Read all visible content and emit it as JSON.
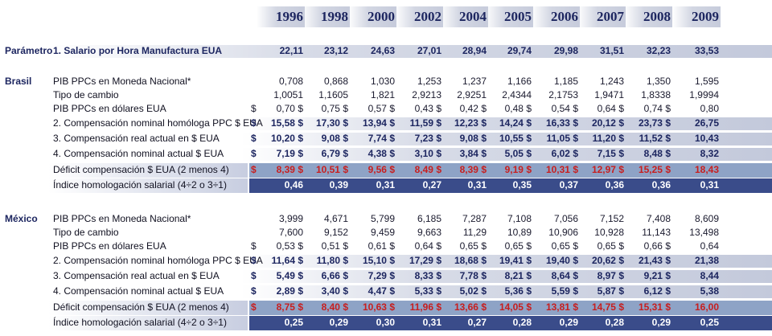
{
  "years": [
    "1996",
    "1998",
    "2000",
    "2002",
    "2004",
    "2005",
    "2006",
    "2007",
    "2008",
    "2009"
  ],
  "parametro": {
    "section": "Parámetro",
    "label": "1. Salario por Hora Manufactura EUA",
    "values": [
      "22,11",
      "23,12",
      "24,63",
      "27,01",
      "28,94",
      "29,74",
      "29,98",
      "31,51",
      "32,23",
      "33,53"
    ]
  },
  "brasil": {
    "section": "Brasil",
    "rows": [
      {
        "label": "PIB PPCs en Moneda Nacional*",
        "dollar": "",
        "values": [
          "0,708",
          "0,868",
          "1,030",
          "1,253",
          "1,237",
          "1,166",
          "1,185",
          "1,243",
          "1,350",
          "1,595"
        ]
      },
      {
        "label": "Tipo de cambio",
        "dollar": "",
        "values": [
          "1,0051",
          "1,1605",
          "1,821",
          "2,9213",
          "2,9251",
          "2,4344",
          "2,1753",
          "1,9471",
          "1,8338",
          "1,9994"
        ]
      },
      {
        "label": "PIB PPCs en dólares EUA",
        "dollar": "$",
        "values": [
          "0,70 $",
          "0,75 $",
          "0,57 $",
          "0,43 $",
          "0,42 $",
          "0,48 $",
          "0,54 $",
          "0,64 $",
          "0,74 $",
          "0,80"
        ]
      },
      {
        "label": "2. Compensación nominal homóloga PPC $ EUA",
        "dollar": "$",
        "values": [
          "15,58 $",
          "17,30 $",
          "13,94 $",
          "11,59 $",
          "12,23 $",
          "14,24 $",
          "16,33 $",
          "20,12 $",
          "23,73 $",
          "26,75"
        ]
      },
      {
        "label": "3. Compensación real actual  en $ EUA",
        "dollar": "$",
        "values": [
          "10,20 $",
          "9,08 $",
          "7,74 $",
          "7,23 $",
          "9,08 $",
          "10,55 $",
          "11,05 $",
          "11,20 $",
          "11,52 $",
          "10,43"
        ]
      },
      {
        "label": "4. Compensación nominal actual $ EUA",
        "dollar": "$",
        "values": [
          "7,19 $",
          "6,79 $",
          "4,38 $",
          "3,10 $",
          "3,84 $",
          "5,05 $",
          "6,02 $",
          "7,15 $",
          "8,48 $",
          "8,32"
        ]
      },
      {
        "label": "Déficit compensación $ EUA (2 menos 4)",
        "dollar": "$",
        "values": [
          "8,39 $",
          "10,51 $",
          "9,56 $",
          "8,49 $",
          "8,39 $",
          "9,19 $",
          "10,31 $",
          "12,97 $",
          "15,25 $",
          "18,43"
        ]
      },
      {
        "label": "Índice homologación salarial (4÷2 o 3÷1)",
        "dollar": "",
        "values": [
          "0,46",
          "0,39",
          "0,31",
          "0,27",
          "0,31",
          "0,35",
          "0,37",
          "0,36",
          "0,36",
          "0,31"
        ]
      }
    ]
  },
  "mexico": {
    "section": "México",
    "rows": [
      {
        "label": "PIB PPCs en Moneda Nacional*",
        "dollar": "",
        "values": [
          "3,999",
          "4,671",
          "5,799",
          "6,185",
          "7,287",
          "7,108",
          "7,056",
          "7,152",
          "7,408",
          "8,609"
        ]
      },
      {
        "label": "Tipo de cambio",
        "dollar": "",
        "values": [
          "7,600",
          "9,152",
          "9,459",
          "9,663",
          "11,29",
          "10,89",
          "10,906",
          "10,928",
          "11,143",
          "13,498"
        ]
      },
      {
        "label": "PIB PPCs en dólares EUA",
        "dollar": "$",
        "values": [
          "0,53 $",
          "0,51 $",
          "0,61 $",
          "0,64 $",
          "0,65 $",
          "0,65 $",
          "0,65 $",
          "0,65 $",
          "0,66 $",
          "0,64"
        ]
      },
      {
        "label": "2. Compensación nominal homóloga PPC $ EUA",
        "dollar": "$",
        "values": [
          "11,64 $",
          "11,80 $",
          "15,10 $",
          "17,29 $",
          "18,68 $",
          "19,41 $",
          "19,40 $",
          "20,62 $",
          "21,43 $",
          "21,38"
        ]
      },
      {
        "label": "3. Compensación real actual  en $ EUA",
        "dollar": "$",
        "values": [
          "5,49 $",
          "6,66 $",
          "7,29 $",
          "8,33 $",
          "7,78 $",
          "8,21 $",
          "8,64 $",
          "8,97 $",
          "9,21 $",
          "8,44"
        ]
      },
      {
        "label": "4. Compensación nominal actual $ EUA",
        "dollar": "$",
        "values": [
          "2,89 $",
          "3,40 $",
          "4,47 $",
          "5,33 $",
          "5,02 $",
          "5,36 $",
          "5,59 $",
          "5,87 $",
          "6,12 $",
          "5,38"
        ]
      },
      {
        "label": "Déficit compensación $ EUA (2 menos 4)",
        "dollar": "$",
        "values": [
          "8,75 $",
          "8,40 $",
          "10,63 $",
          "11,96 $",
          "13,66 $",
          "14,05 $",
          "13,81 $",
          "14,75 $",
          "15,31 $",
          "16,00"
        ]
      },
      {
        "label": "Índice homologación salarial (4÷2 o 3÷1)",
        "dollar": "",
        "values": [
          "0,25",
          "0,29",
          "0,30",
          "0,31",
          "0,27",
          "0,28",
          "0,29",
          "0,28",
          "0,29",
          "0,25"
        ]
      }
    ]
  }
}
